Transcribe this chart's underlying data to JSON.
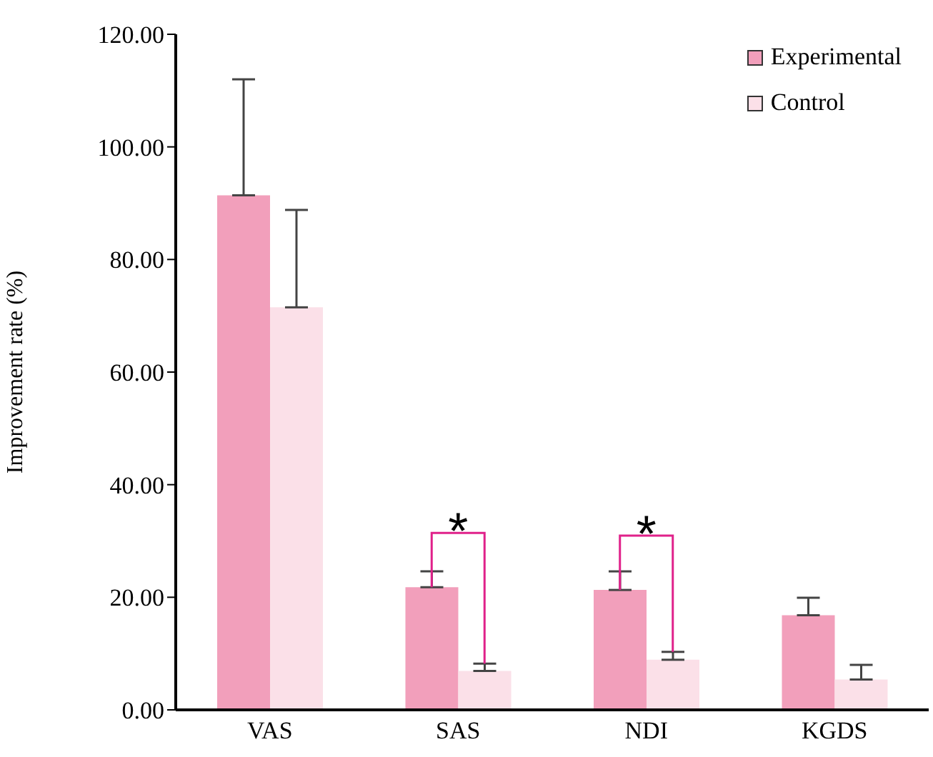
{
  "chart_data": {
    "type": "bar",
    "ylabel": "Improvement rate (%)",
    "categories": [
      "VAS",
      "SAS",
      "NDI",
      "KGDS"
    ],
    "series": [
      {
        "name": "Experimental",
        "color": "#f29fbb",
        "values": [
          91.4,
          21.8,
          21.3,
          16.8
        ],
        "errors": [
          [
            91.4,
            112
          ],
          [
            21.8,
            24.6
          ],
          [
            21.3,
            24.6
          ],
          [
            16.8,
            19.9
          ]
        ]
      },
      {
        "name": "Control",
        "color": "#fbe0e8",
        "values": [
          71.5,
          6.9,
          8.9,
          5.4
        ],
        "errors": [
          [
            71.5,
            88.8
          ],
          [
            6.9,
            8.2
          ],
          [
            8.9,
            10.3
          ],
          [
            5.4,
            8.0
          ]
        ]
      }
    ],
    "ylim": [
      0,
      120
    ],
    "yticks": [
      {
        "value": 0,
        "label": "0.00"
      },
      {
        "value": 20,
        "label": "20.00"
      },
      {
        "value": 40,
        "label": "40.00"
      },
      {
        "value": 60,
        "label": "60.00"
      },
      {
        "value": 80,
        "label": "80.00"
      },
      {
        "value": 100,
        "label": "100.00"
      },
      {
        "value": 120,
        "label": "120.00"
      }
    ],
    "annotations": [
      {
        "text": "*",
        "x": "SAS",
        "y": 21.8
      },
      {
        "text": "*",
        "x": "NDI",
        "y": 21.3
      }
    ],
    "legend": "top right",
    "grid": false
  }
}
